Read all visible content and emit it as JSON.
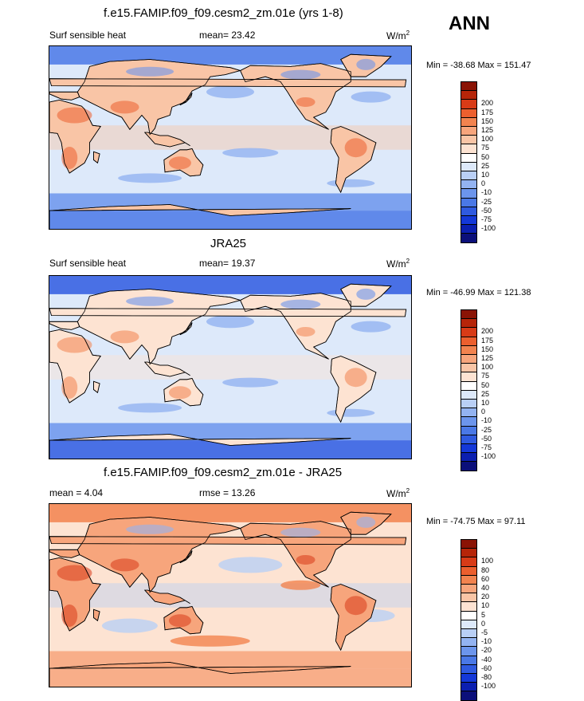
{
  "season": "ANN",
  "panels": [
    {
      "title": "f.e15.FAMIP.f09_f09.cesm2_zm.01e (yrs 1-8)",
      "left_label": "Surf sensible heat",
      "center_label": "mean=  23.42",
      "units_base": "W/m",
      "units_exp": "2",
      "minmax": "Min = -38.68 Max = 151.47",
      "colorbar_colors": [
        "#0b0f7a",
        "#0b1fb0",
        "#1438d8",
        "#2f5ae0",
        "#4a78e6",
        "#6c95ec",
        "#93b3f1",
        "#b9cff5",
        "#dde9fa",
        "#ffffff",
        "#fde3d2",
        "#f9c5a6",
        "#f7a57c",
        "#f2834f",
        "#ec5f2e",
        "#d83b17",
        "#b62509",
        "#8a1305"
      ],
      "colorbar_labels": [
        "200",
        "175",
        "150",
        "125",
        "100",
        "75",
        "50",
        "25",
        "10",
        "0",
        "-10",
        "-25",
        "-50",
        "-75",
        "-100"
      ],
      "map_palette": {
        "ocean": "#dde9fa",
        "land": "#f9c5a6",
        "cold": "#93b3f1",
        "cool": "#6c95ec",
        "warm": "#f7a57c",
        "hot": "#ec5f2e",
        "deep": "#4a78e6"
      }
    },
    {
      "title": "JRA25",
      "left_label": "Surf sensible heat",
      "center_label": "mean=  19.37",
      "units_base": "W/m",
      "units_exp": "2",
      "minmax": "Min = -46.99 Max = 121.38",
      "colorbar_colors": [
        "#0b0f7a",
        "#0b1fb0",
        "#1438d8",
        "#2f5ae0",
        "#4a78e6",
        "#6c95ec",
        "#93b3f1",
        "#b9cff5",
        "#dde9fa",
        "#ffffff",
        "#fde3d2",
        "#f9c5a6",
        "#f7a57c",
        "#f2834f",
        "#ec5f2e",
        "#d83b17",
        "#b62509",
        "#8a1305"
      ],
      "colorbar_labels": [
        "200",
        "175",
        "150",
        "125",
        "100",
        "75",
        "50",
        "25",
        "10",
        "0",
        "-10",
        "-25",
        "-50",
        "-75",
        "-100"
      ],
      "map_palette": {
        "ocean": "#dde9fa",
        "land": "#fde3d2",
        "cold": "#93b3f1",
        "cool": "#6c95ec",
        "warm": "#f9c5a6",
        "hot": "#f2834f",
        "deep": "#2f5ae0"
      }
    },
    {
      "title": "f.e15.FAMIP.f09_f09.cesm2_zm.01e - JRA25",
      "left_label": "mean =   4.04",
      "center_label": "rmse =  13.26",
      "units_base": "W/m",
      "units_exp": "2",
      "minmax": "Min = -74.75 Max =  97.11",
      "colorbar_colors": [
        "#0b0f7a",
        "#0b1fb0",
        "#1438d8",
        "#2f5ae0",
        "#4a78e6",
        "#6c95ec",
        "#93b3f1",
        "#b9cff5",
        "#dde9fa",
        "#ffffff",
        "#fde3d2",
        "#f9c5a6",
        "#f7a57c",
        "#f2834f",
        "#ec5f2e",
        "#d83b17",
        "#b62509",
        "#8a1305"
      ],
      "colorbar_labels": [
        "100",
        "80",
        "60",
        "40",
        "20",
        "10",
        "5",
        "0",
        "-5",
        "-10",
        "-20",
        "-40",
        "-60",
        "-80",
        "-100"
      ],
      "map_palette": {
        "ocean": "#fde3d2",
        "land": "#f7a57c",
        "cold": "#b9cff5",
        "cool": "#93b3f1",
        "warm": "#f2834f",
        "hot": "#d83b17",
        "deep": "#6c95ec"
      }
    }
  ]
}
